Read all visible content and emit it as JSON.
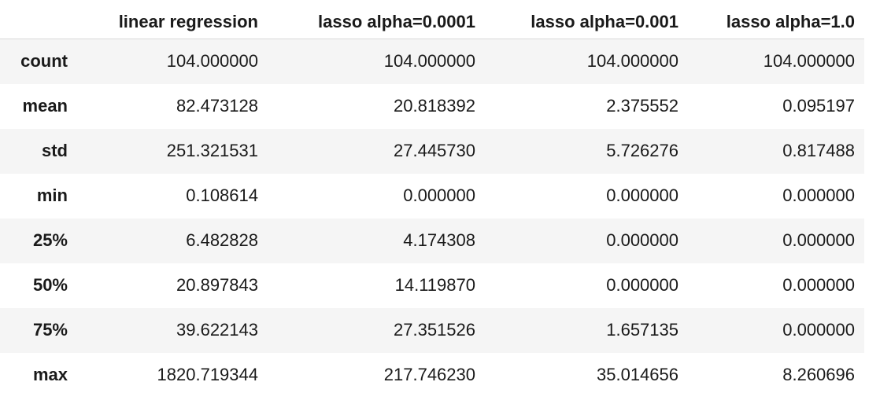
{
  "table": {
    "headers": [
      "",
      "linear regression",
      "lasso alpha=0.0001",
      "lasso alpha=0.001",
      "lasso alpha=1.0"
    ],
    "rows": [
      {
        "label": "count",
        "values": [
          "104.000000",
          "104.000000",
          "104.000000",
          "104.000000"
        ]
      },
      {
        "label": "mean",
        "values": [
          "82.473128",
          "20.818392",
          "2.375552",
          "0.095197"
        ]
      },
      {
        "label": "std",
        "values": [
          "251.321531",
          "27.445730",
          "5.726276",
          "0.817488"
        ]
      },
      {
        "label": "min",
        "values": [
          "0.108614",
          "0.000000",
          "0.000000",
          "0.000000"
        ]
      },
      {
        "label": "25%",
        "values": [
          "6.482828",
          "4.174308",
          "0.000000",
          "0.000000"
        ]
      },
      {
        "label": "50%",
        "values": [
          "20.897843",
          "14.119870",
          "0.000000",
          "0.000000"
        ]
      },
      {
        "label": "75%",
        "values": [
          "39.622143",
          "27.351526",
          "1.657135",
          "0.000000"
        ]
      },
      {
        "label": "max",
        "values": [
          "1820.719344",
          "217.746230",
          "35.014656",
          "8.260696"
        ]
      }
    ]
  }
}
